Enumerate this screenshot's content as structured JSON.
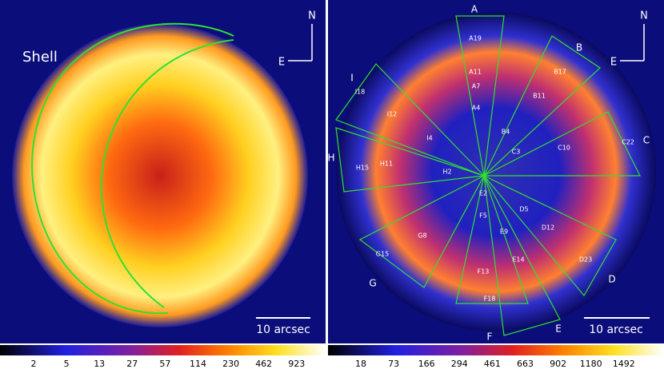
{
  "left_panel": {
    "label": "Shell",
    "compass": {
      "north": "N",
      "east": "E"
    },
    "scale_bar": "10 arcsec",
    "colorbar_ticks": [
      2,
      5,
      13,
      27,
      57,
      114,
      230,
      462,
      923
    ]
  },
  "right_panel": {
    "compass": {
      "north": "N",
      "east": "E"
    },
    "scale_bar": "10 arcsec",
    "regions": [
      "A",
      "B",
      "C",
      "D",
      "E",
      "F",
      "G",
      "H",
      "I"
    ],
    "sectors": [
      "A19",
      "A11",
      "A7",
      "A4",
      "B17",
      "B11",
      "B4",
      "C3",
      "C10",
      "C22",
      "D5",
      "D12",
      "D23",
      "E2",
      "E9",
      "E14",
      "F5",
      "F13",
      "F18",
      "G8",
      "G15",
      "H2",
      "H11",
      "H15",
      "I4",
      "I12",
      "I18"
    ],
    "colorbar_ticks": [
      18,
      73,
      166,
      294,
      461,
      663,
      902,
      1180,
      1492
    ]
  }
}
